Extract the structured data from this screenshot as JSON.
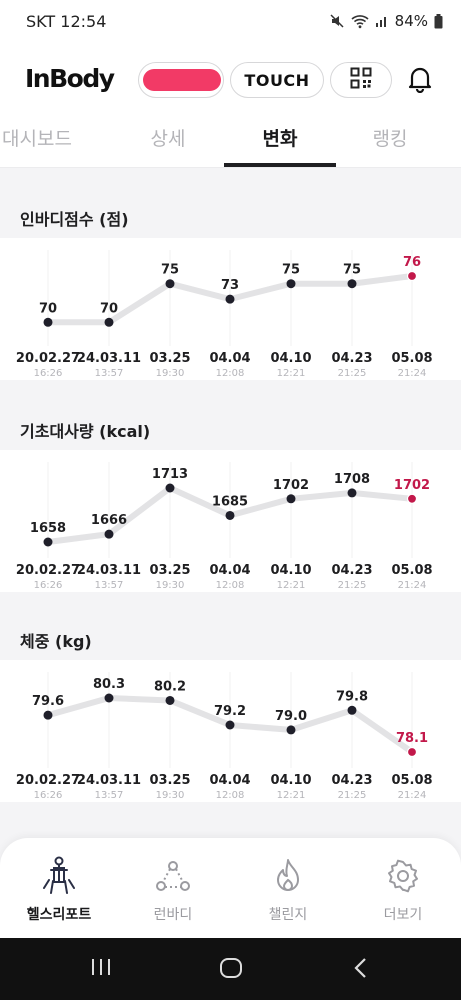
{
  "status_bar": {
    "carrier_time": "SKT 12:54",
    "battery": "84%",
    "icons": [
      "mute-icon",
      "wifi-icon",
      "signal-icon",
      "battery-icon"
    ]
  },
  "header": {
    "logo": "InBody",
    "touch_label": "TOUCH",
    "icons": [
      "qr-code-icon",
      "bell-icon"
    ]
  },
  "tabs": [
    {
      "label": "대시보드",
      "active": false
    },
    {
      "label": "상세",
      "active": false
    },
    {
      "label": "변화",
      "active": true
    },
    {
      "label": "랭킹",
      "active": false
    }
  ],
  "colors": {
    "accent": "#c2184a",
    "line": "#e3e3e5",
    "point": "#1f1f2a"
  },
  "chart_data": [
    {
      "type": "line",
      "title": "인바디점수 (점)",
      "x": [
        "20.02.27",
        "24.03.11",
        "03.25",
        "04.04",
        "04.10",
        "04.23",
        "05.08"
      ],
      "times": [
        "16:26",
        "13:57",
        "19:30",
        "12:08",
        "12:21",
        "21:25",
        "21:24"
      ],
      "values": [
        70,
        70,
        75,
        73,
        75,
        75,
        76
      ],
      "value_labels": [
        "70",
        "70",
        "75",
        "73",
        "75",
        "75",
        "76"
      ],
      "ylim": [
        69,
        76
      ],
      "highlight_last": true
    },
    {
      "type": "line",
      "title": "기초대사량 (kcal)",
      "x": [
        "20.02.27",
        "24.03.11",
        "03.25",
        "04.04",
        "04.10",
        "04.23",
        "05.08"
      ],
      "times": [
        "16:26",
        "13:57",
        "19:30",
        "12:08",
        "12:21",
        "21:25",
        "21:24"
      ],
      "values": [
        1658,
        1666,
        1713,
        1685,
        1702,
        1708,
        1702
      ],
      "value_labels": [
        "1658",
        "1666",
        "1713",
        "1685",
        "1702",
        "1708",
        "1702"
      ],
      "ylim": [
        1658,
        1713
      ],
      "highlight_last": true
    },
    {
      "type": "line",
      "title": "체중 (kg)",
      "x": [
        "20.02.27",
        "24.03.11",
        "03.25",
        "04.04",
        "04.10",
        "04.23",
        "05.08"
      ],
      "times": [
        "16:26",
        "13:57",
        "19:30",
        "12:08",
        "12:21",
        "21:25",
        "21:24"
      ],
      "values": [
        79.6,
        80.3,
        80.2,
        79.2,
        79.0,
        79.8,
        78.1
      ],
      "value_labels": [
        "79.6",
        "80.3",
        "80.2",
        "79.2",
        "79.0",
        "79.8",
        "78.1"
      ],
      "ylim": [
        78.1,
        80.3
      ],
      "highlight_last": true
    }
  ],
  "bottom_nav": [
    {
      "label": "헬스리포트",
      "icon": "body-report-icon",
      "active": true
    },
    {
      "label": "런바디",
      "icon": "runbody-icon",
      "active": false
    },
    {
      "label": "챌린지",
      "icon": "flame-icon",
      "active": false
    },
    {
      "label": "더보기",
      "icon": "gear-icon",
      "active": false
    }
  ],
  "system_nav": [
    "recent-apps-icon",
    "home-icon",
    "back-icon"
  ]
}
